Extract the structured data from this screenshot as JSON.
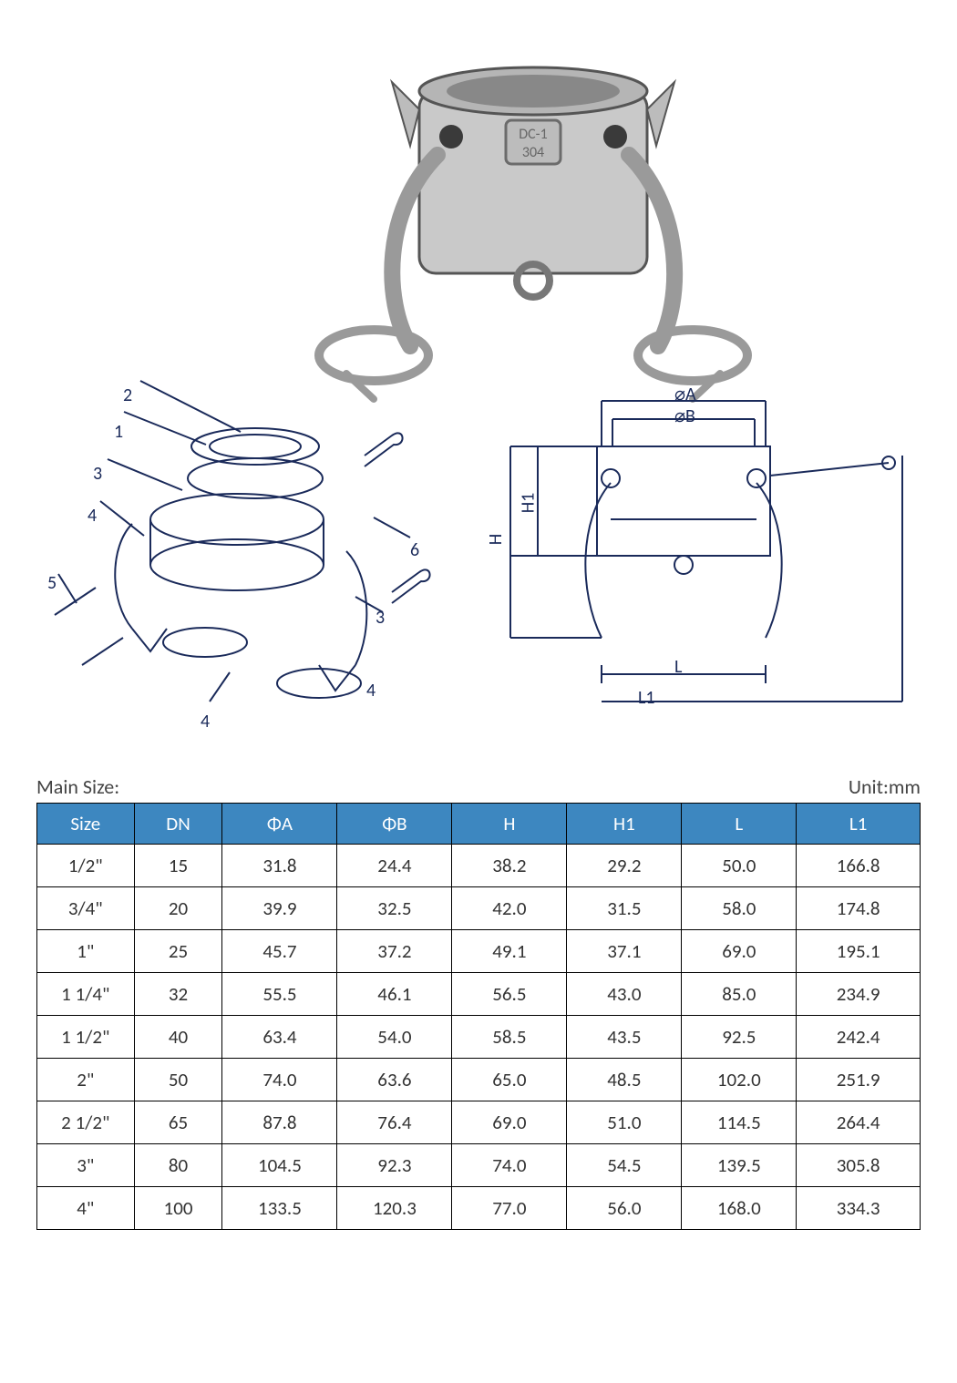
{
  "header": {
    "main_size_label": "Main Size:",
    "unit_label": "Unit:mm"
  },
  "table": {
    "header_bg": "#3d87c0",
    "header_fg": "#ffffff",
    "border_color": "#000000",
    "columns": [
      "Size",
      "DN",
      "ΦA",
      "ΦB",
      "H",
      "H1",
      "L",
      "L1"
    ],
    "rows": [
      [
        "1/2\"",
        "15",
        "31.8",
        "24.4",
        "38.2",
        "29.2",
        "50.0",
        "166.8"
      ],
      [
        "3/4\"",
        "20",
        "39.9",
        "32.5",
        "42.0",
        "31.5",
        "58.0",
        "174.8"
      ],
      [
        "1\"",
        "25",
        "45.7",
        "37.2",
        "49.1",
        "37.1",
        "69.0",
        "195.1"
      ],
      [
        "1 1/4\"",
        "32",
        "55.5",
        "46.1",
        "56.5",
        "43.0",
        "85.0",
        "234.9"
      ],
      [
        "1 1/2\"",
        "40",
        "63.4",
        "54.0",
        "58.5",
        "43.5",
        "92.5",
        "242.4"
      ],
      [
        "2\"",
        "50",
        "74.0",
        "63.6",
        "65.0",
        "48.5",
        "102.0",
        "251.9"
      ],
      [
        "2 1/2\"",
        "65",
        "87.8",
        "76.4",
        "69.0",
        "51.0",
        "114.5",
        "264.4"
      ],
      [
        "3\"",
        "80",
        "104.5",
        "92.3",
        "74.0",
        "54.5",
        "139.5",
        "305.8"
      ],
      [
        "4\"",
        "100",
        "133.5",
        "120.3",
        "77.0",
        "56.0",
        "168.0",
        "334.3"
      ]
    ]
  },
  "diagram": {
    "product_marking": "DC-1 304",
    "callouts": [
      "1",
      "2",
      "3",
      "4",
      "5",
      "6"
    ],
    "dimension_labels": [
      "⌀A",
      "⌀B",
      "H",
      "H1",
      "L",
      "L1"
    ],
    "stroke_color": "#1a2a5a",
    "photo_tone_light": "#d8d8d8",
    "photo_tone_dark": "#6a6a6a"
  }
}
